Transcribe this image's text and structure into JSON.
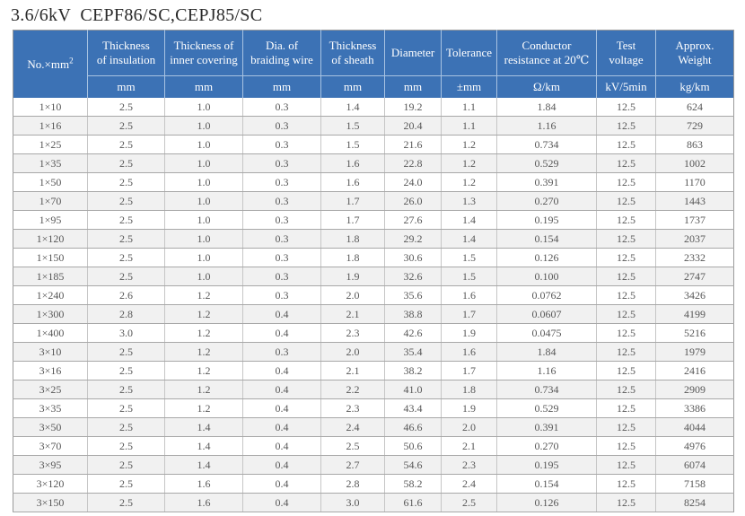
{
  "page": {
    "title": "3.6/6kV  CEPF86/SC,CEPJ85/SC"
  },
  "colors": {
    "header_bg": "#3c72b5",
    "header_text": "#ffffff",
    "header_divider": "#a8c3e2",
    "alt_row_bg": "#f1f1f1",
    "body_text": "#575757",
    "grid_line": "#a8a8a8"
  },
  "table": {
    "first_column_header": {
      "label": "No.×mm",
      "sup": "2"
    },
    "columns": [
      {
        "lines": [
          "Thickness",
          "of insulation"
        ],
        "unit": "mm"
      },
      {
        "lines": [
          "Thickness of",
          "inner covering"
        ],
        "unit": "mm"
      },
      {
        "lines": [
          "Dia. of",
          "braiding wire"
        ],
        "unit": "mm"
      },
      {
        "lines": [
          "Thickness",
          "of sheath"
        ],
        "unit": "mm"
      },
      {
        "lines": [
          "Diameter"
        ],
        "unit": "mm"
      },
      {
        "lines": [
          "Tolerance"
        ],
        "unit": "±mm"
      },
      {
        "lines": [
          "Conductor",
          "resistance at 20℃"
        ],
        "unit": "Ω/km"
      },
      {
        "lines": [
          "Test",
          "voltage"
        ],
        "unit": "kV/5min"
      },
      {
        "lines": [
          "Approx.",
          "Weight"
        ],
        "unit": "kg/km"
      }
    ],
    "rows": [
      [
        "1×10",
        "2.5",
        "1.0",
        "0.3",
        "1.4",
        "19.2",
        "1.1",
        "1.84",
        "12.5",
        "624"
      ],
      [
        "1×16",
        "2.5",
        "1.0",
        "0.3",
        "1.5",
        "20.4",
        "1.1",
        "1.16",
        "12.5",
        "729"
      ],
      [
        "1×25",
        "2.5",
        "1.0",
        "0.3",
        "1.5",
        "21.6",
        "1.2",
        "0.734",
        "12.5",
        "863"
      ],
      [
        "1×35",
        "2.5",
        "1.0",
        "0.3",
        "1.6",
        "22.8",
        "1.2",
        "0.529",
        "12.5",
        "1002"
      ],
      [
        "1×50",
        "2.5",
        "1.0",
        "0.3",
        "1.6",
        "24.0",
        "1.2",
        "0.391",
        "12.5",
        "1170"
      ],
      [
        "1×70",
        "2.5",
        "1.0",
        "0.3",
        "1.7",
        "26.0",
        "1.3",
        "0.270",
        "12.5",
        "1443"
      ],
      [
        "1×95",
        "2.5",
        "1.0",
        "0.3",
        "1.7",
        "27.6",
        "1.4",
        "0.195",
        "12.5",
        "1737"
      ],
      [
        "1×120",
        "2.5",
        "1.0",
        "0.3",
        "1.8",
        "29.2",
        "1.4",
        "0.154",
        "12.5",
        "2037"
      ],
      [
        "1×150",
        "2.5",
        "1.0",
        "0.3",
        "1.8",
        "30.6",
        "1.5",
        "0.126",
        "12.5",
        "2332"
      ],
      [
        "1×185",
        "2.5",
        "1.0",
        "0.3",
        "1.9",
        "32.6",
        "1.5",
        "0.100",
        "12.5",
        "2747"
      ],
      [
        "1×240",
        "2.6",
        "1.2",
        "0.3",
        "2.0",
        "35.6",
        "1.6",
        "0.0762",
        "12.5",
        "3426"
      ],
      [
        "1×300",
        "2.8",
        "1.2",
        "0.4",
        "2.1",
        "38.8",
        "1.7",
        "0.0607",
        "12.5",
        "4199"
      ],
      [
        "1×400",
        "3.0",
        "1.2",
        "0.4",
        "2.3",
        "42.6",
        "1.9",
        "0.0475",
        "12.5",
        "5216"
      ],
      [
        "3×10",
        "2.5",
        "1.2",
        "0.3",
        "2.0",
        "35.4",
        "1.6",
        "1.84",
        "12.5",
        "1979"
      ],
      [
        "3×16",
        "2.5",
        "1.2",
        "0.4",
        "2.1",
        "38.2",
        "1.7",
        "1.16",
        "12.5",
        "2416"
      ],
      [
        "3×25",
        "2.5",
        "1.2",
        "0.4",
        "2.2",
        "41.0",
        "1.8",
        "0.734",
        "12.5",
        "2909"
      ],
      [
        "3×35",
        "2.5",
        "1.2",
        "0.4",
        "2.3",
        "43.4",
        "1.9",
        "0.529",
        "12.5",
        "3386"
      ],
      [
        "3×50",
        "2.5",
        "1.4",
        "0.4",
        "2.4",
        "46.6",
        "2.0",
        "0.391",
        "12.5",
        "4044"
      ],
      [
        "3×70",
        "2.5",
        "1.4",
        "0.4",
        "2.5",
        "50.6",
        "2.1",
        "0.270",
        "12.5",
        "4976"
      ],
      [
        "3×95",
        "2.5",
        "1.4",
        "0.4",
        "2.7",
        "54.6",
        "2.3",
        "0.195",
        "12.5",
        "6074"
      ],
      [
        "3×120",
        "2.5",
        "1.6",
        "0.4",
        "2.8",
        "58.2",
        "2.4",
        "0.154",
        "12.5",
        "7158"
      ],
      [
        "3×150",
        "2.5",
        "1.6",
        "0.4",
        "3.0",
        "61.6",
        "2.5",
        "0.126",
        "12.5",
        "8254"
      ]
    ]
  }
}
